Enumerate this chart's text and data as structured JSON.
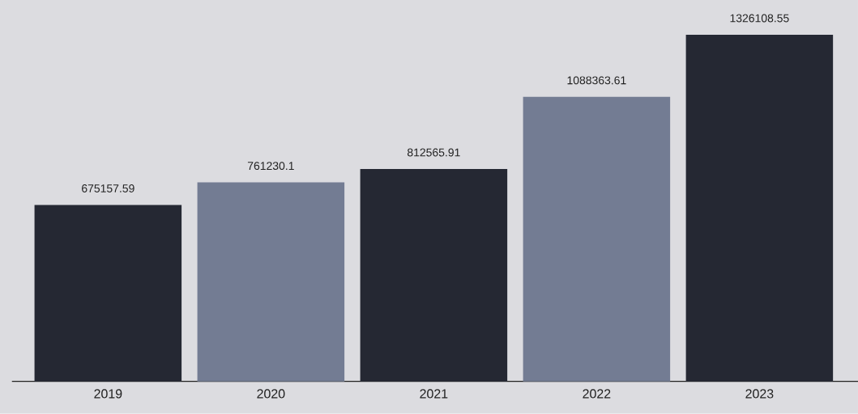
{
  "chart_data": {
    "type": "bar",
    "categories": [
      "2019",
      "2020",
      "2021",
      "2022",
      "2023"
    ],
    "values": [
      675157.59,
      761230.1,
      812565.91,
      1088363.61,
      1326108.55
    ],
    "colors": [
      "#252833",
      "#737c93",
      "#252833",
      "#737c93",
      "#252833"
    ],
    "tick_labels": "x",
    "data_labels": true
  }
}
